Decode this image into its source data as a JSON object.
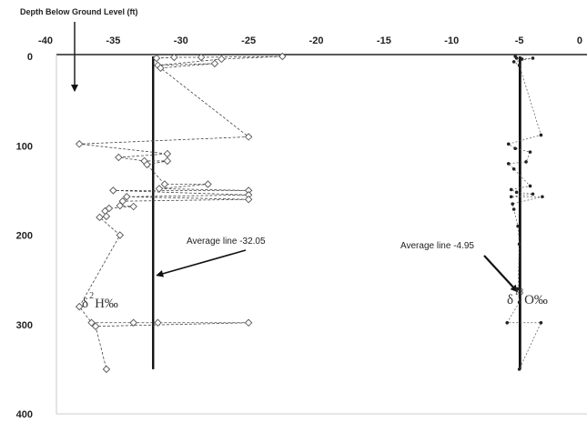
{
  "chart_data": {
    "type": "scatter",
    "title": "",
    "axis_title": "Depth Below Ground Level (ft)",
    "xlim": [
      -40,
      0
    ],
    "ylim": [
      0,
      400
    ],
    "x_ticks": [
      "-40",
      "-35",
      "-30",
      "-25",
      "-20",
      "-15",
      "-10",
      "-5",
      "0"
    ],
    "y_ticks": [
      "0",
      "100",
      "200",
      "300",
      "400"
    ],
    "grid": false,
    "series": [
      {
        "name": "δ2H‰",
        "style": "dashed-line-diamond-markers",
        "points": [
          [
            -31.8,
            2
          ],
          [
            -30.5,
            1
          ],
          [
            -28.5,
            1
          ],
          [
            -22.5,
            0
          ],
          [
            -27.0,
            3
          ],
          [
            -31.7,
            10
          ],
          [
            -27.5,
            8
          ],
          [
            -31.5,
            13
          ],
          [
            -25.0,
            90
          ],
          [
            -37.5,
            98
          ],
          [
            -31.0,
            109
          ],
          [
            -34.6,
            113
          ],
          [
            -32.7,
            117
          ],
          [
            -31.0,
            117
          ],
          [
            -32.5,
            121
          ],
          [
            -31.2,
            143
          ],
          [
            -28.0,
            143
          ],
          [
            -31.6,
            148
          ],
          [
            -25.0,
            150
          ],
          [
            -35.0,
            150
          ],
          [
            -25.0,
            155
          ],
          [
            -34.0,
            157
          ],
          [
            -25.0,
            160
          ],
          [
            -34.3,
            162
          ],
          [
            -34.5,
            167
          ],
          [
            -33.5,
            168
          ],
          [
            -35.3,
            170
          ],
          [
            -35.6,
            173
          ],
          [
            -35.5,
            179
          ],
          [
            -36.0,
            180
          ],
          [
            -34.5,
            200
          ],
          [
            -37.5,
            280
          ],
          [
            -36.6,
            298
          ],
          [
            -33.5,
            298
          ],
          [
            -31.7,
            298
          ],
          [
            -25.0,
            298
          ],
          [
            -36.3,
            302
          ],
          [
            -35.5,
            350
          ]
        ]
      },
      {
        "name": "δ18O‰",
        "style": "dotted-line-dot-markers",
        "points": [
          [
            -5.3,
            0
          ],
          [
            -5.2,
            2
          ],
          [
            -4.8,
            3
          ],
          [
            -4.0,
            2
          ],
          [
            -5.4,
            6
          ],
          [
            -5.0,
            10
          ],
          [
            -3.4,
            88
          ],
          [
            -5.8,
            98
          ],
          [
            -5.3,
            103
          ],
          [
            -4.2,
            107
          ],
          [
            -4.5,
            118
          ],
          [
            -5.8,
            120
          ],
          [
            -5.4,
            126
          ],
          [
            -4.2,
            145
          ],
          [
            -5.6,
            149
          ],
          [
            -5.2,
            152
          ],
          [
            -4.0,
            154
          ],
          [
            -5.6,
            157
          ],
          [
            -3.3,
            157
          ],
          [
            -5.5,
            165
          ],
          [
            -5.4,
            171
          ],
          [
            -5.1,
            190
          ],
          [
            -5.0,
            210
          ],
          [
            -5.1,
            260
          ],
          [
            -5.0,
            275
          ],
          [
            -5.9,
            298
          ],
          [
            -3.4,
            298
          ],
          [
            -5.0,
            350
          ]
        ]
      }
    ],
    "reference_lines": [
      {
        "x": -32.05,
        "label": "Average line -32.05",
        "from_depth": 0,
        "to_depth": 350
      },
      {
        "x": -4.95,
        "label": "Average line -4.95",
        "from_depth": 0,
        "to_depth": 350
      }
    ],
    "annotations": [
      {
        "text": "Average line -32.05",
        "points_to": [
          -32.05,
          245
        ]
      },
      {
        "text": "Average line -4.95",
        "points_to": [
          -4.95,
          255
        ]
      }
    ],
    "series_labels": [
      {
        "base": "δ",
        "sup": "2",
        "rest": "H‰"
      },
      {
        "base": "δ",
        "sup": "18",
        "rest": "O‰"
      }
    ]
  }
}
